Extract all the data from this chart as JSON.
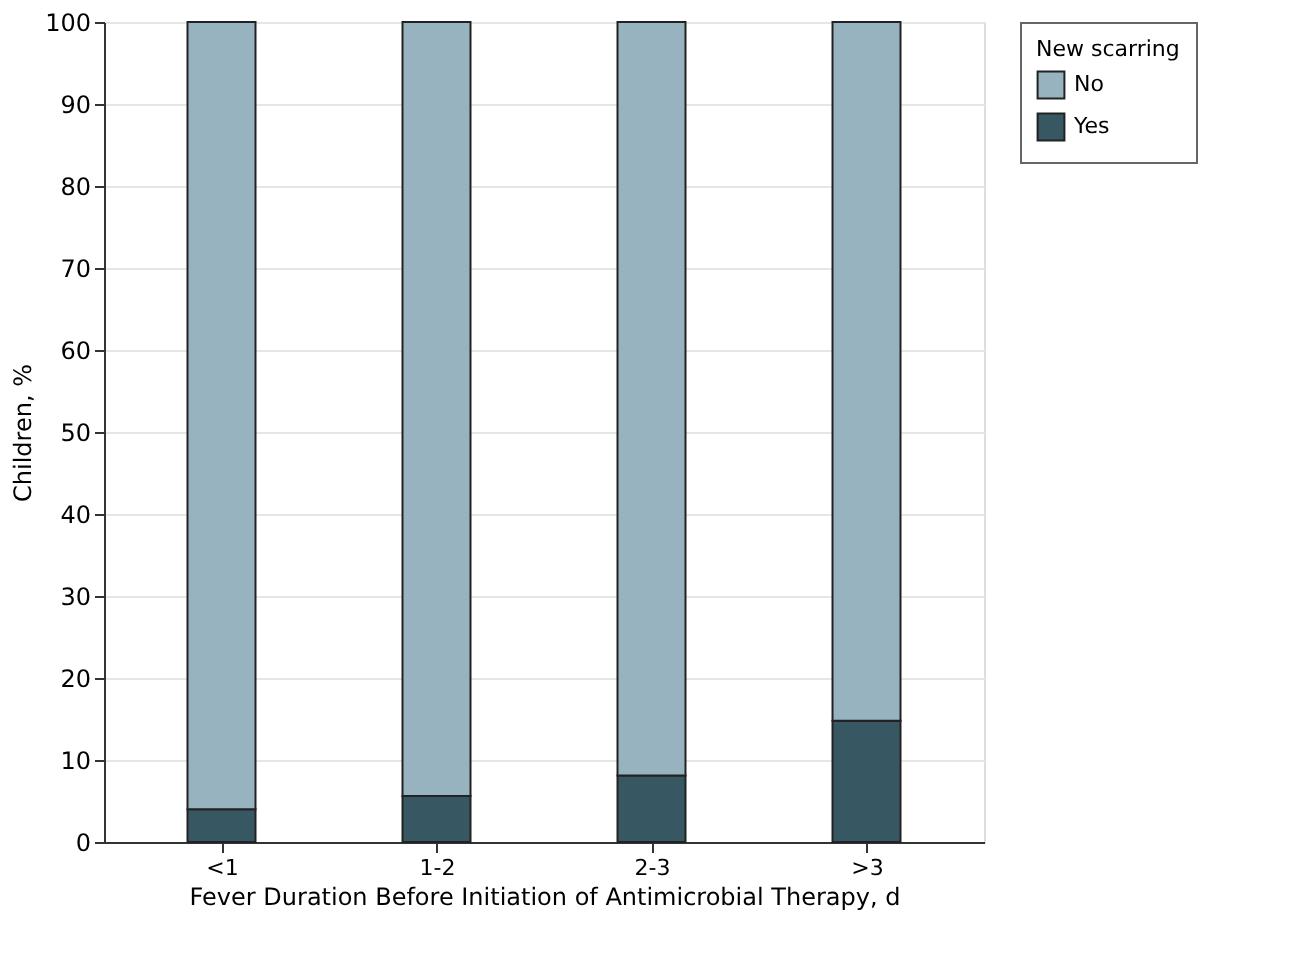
{
  "chart_data": {
    "type": "bar",
    "stacked": true,
    "xlabel": "Fever Duration Before Initiation of Antimicrobial Therapy, d",
    "ylabel": "Children, %",
    "legend_title": "New scarring",
    "categories": [
      "<1",
      "1-2",
      "2-3",
      ">3"
    ],
    "series": [
      {
        "name": "Yes",
        "color": "#375863",
        "values": [
          4.0,
          5.6,
          8.1,
          14.8
        ]
      },
      {
        "name": "No",
        "color": "#97b3bf",
        "values": [
          96.0,
          94.4,
          91.9,
          85.2
        ]
      }
    ],
    "ylim": [
      0,
      100
    ],
    "yticks": [
      0,
      10,
      20,
      30,
      40,
      50,
      60,
      70,
      80,
      90,
      100
    ],
    "grid": "y",
    "legend": "top right"
  }
}
